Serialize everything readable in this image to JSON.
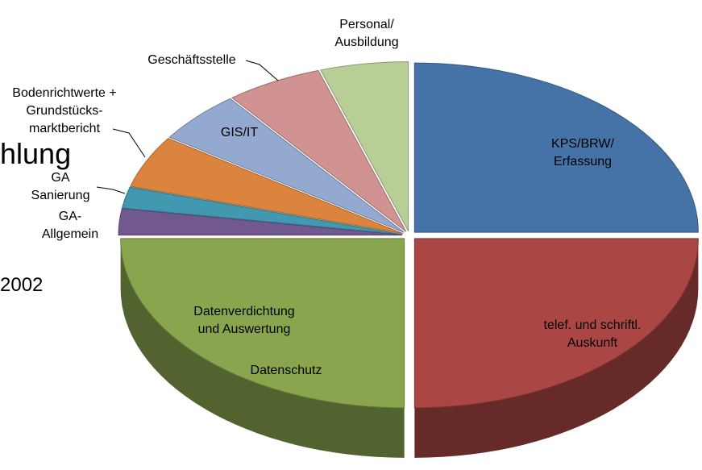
{
  "chart_data": {
    "type": "pie3d",
    "categories": [
      "KPS/BRW/\nErfassung",
      "telef. und schriftl.\nAuskunft",
      "Datenverdichtung\nund Auswertung",
      "GA-\nAllgemein",
      "GA\nSanierung",
      "Bodenrichtwerte +\nGrundstücks-\nmarktbericht",
      "GIS/IT",
      "Geschäftsstelle",
      "Personal/\nAusbildung"
    ],
    "values": [
      25,
      25,
      25,
      2.5,
      2,
      5,
      5,
      5.5,
      5
    ],
    "colors": [
      "#4572a7",
      "#aa4643",
      "#89a54e",
      "#71588f",
      "#4198af",
      "#db843d",
      "#93a9cf",
      "#d19392",
      "#b9cd96"
    ],
    "annotations": [
      "Datenschutz"
    ],
    "background_texts": [
      "hlung",
      "2002"
    ]
  }
}
